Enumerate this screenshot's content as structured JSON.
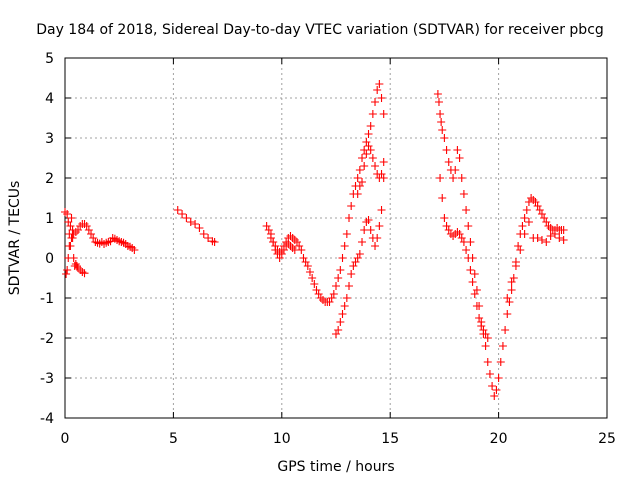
{
  "chart_data": {
    "type": "scatter",
    "title": "Day 184 of 2018, Sidereal Day-to-day VTEC variation (SDTVAR) for receiver pbcg",
    "xlabel": "GPS time / hours",
    "ylabel": "SDTVAR / TECUs",
    "xlim": [
      0,
      25
    ],
    "ylim": [
      -4,
      5
    ],
    "xticks": [
      "0",
      "5",
      "10",
      "15",
      "20",
      "25"
    ],
    "yticks": [
      "-4",
      "-3",
      "-2",
      "-1",
      "0",
      "1",
      "2",
      "3",
      "4",
      "5"
    ],
    "grid": true,
    "marker": "+",
    "color": "#ff0000",
    "series": [
      {
        "x": [
          0.0,
          0.1,
          0.15,
          0.2,
          0.25,
          0.3,
          0.35,
          0.4,
          0.5,
          0.6,
          0.7,
          0.8,
          0.9,
          1.0,
          1.1,
          1.2,
          1.3,
          1.4,
          1.5,
          1.6,
          1.7,
          1.8,
          1.9,
          2.0,
          2.1,
          2.2,
          2.3,
          2.4,
          2.5,
          2.6,
          2.7,
          2.8,
          2.9,
          3.0,
          3.1,
          3.2
        ],
        "y": [
          1.15,
          1.1,
          0.9,
          0.6,
          0.3,
          0.5,
          0.7,
          0.6,
          0.65,
          0.7,
          0.8,
          0.85,
          0.85,
          0.8,
          0.7,
          0.6,
          0.5,
          0.4,
          0.38,
          0.36,
          0.4,
          0.35,
          0.38,
          0.4,
          0.42,
          0.5,
          0.48,
          0.45,
          0.42,
          0.4,
          0.38,
          0.35,
          0.3,
          0.28,
          0.25,
          0.2
        ]
      },
      {
        "x": [
          0.05,
          0.1,
          0.15,
          0.2,
          0.25,
          0.3,
          0.35,
          0.4,
          0.45,
          0.5,
          0.55,
          0.6,
          0.7,
          0.8,
          0.9
        ],
        "y": [
          -0.4,
          -0.3,
          0.0,
          0.3,
          0.8,
          1.0,
          0.5,
          0.0,
          -0.2,
          -0.15,
          -0.2,
          -0.25,
          -0.3,
          -0.35,
          -0.38
        ]
      },
      {
        "x": [
          5.2,
          5.4,
          5.6,
          5.8,
          6.0,
          6.2,
          6.4,
          6.6,
          6.8,
          6.9
        ],
        "y": [
          1.2,
          1.1,
          1.0,
          0.9,
          0.85,
          0.75,
          0.6,
          0.5,
          0.42,
          0.4
        ]
      },
      {
        "x": [
          9.3,
          9.4,
          9.5,
          9.6,
          9.7,
          9.8,
          9.9,
          10.0,
          10.1,
          10.2,
          10.3,
          10.4,
          10.5,
          10.6,
          10.7,
          10.8,
          10.9,
          11.0,
          11.1,
          11.2,
          11.3,
          11.4,
          11.5,
          11.6,
          11.7,
          11.8,
          11.9,
          12.0,
          12.1,
          12.2,
          12.3,
          12.4,
          12.5,
          12.6,
          12.7,
          12.8,
          12.9,
          13.0,
          13.1,
          13.2,
          13.3,
          13.4,
          13.5,
          13.6,
          13.7,
          13.8,
          13.9,
          14.0,
          14.1,
          14.2,
          14.3,
          14.4,
          14.5,
          14.6,
          14.7
        ],
        "y": [
          0.8,
          0.7,
          0.6,
          0.4,
          0.3,
          0.2,
          0.15,
          0.2,
          0.3,
          0.4,
          0.5,
          0.55,
          0.5,
          0.45,
          0.4,
          0.3,
          0.2,
          0.0,
          -0.1,
          -0.2,
          -0.35,
          -0.5,
          -0.65,
          -0.8,
          -0.9,
          -1.0,
          -1.05,
          -1.1,
          -1.1,
          -1.1,
          -1.0,
          -0.9,
          -0.7,
          -0.5,
          -0.3,
          0.0,
          0.3,
          0.6,
          1.0,
          1.3,
          1.6,
          1.8,
          2.0,
          2.2,
          2.5,
          2.7,
          2.9,
          3.1,
          3.3,
          3.6,
          3.9,
          4.2,
          4.35,
          4.0,
          3.6
        ]
      },
      {
        "x": [
          9.5,
          9.6,
          9.7,
          9.8,
          9.9,
          10.0,
          10.1,
          10.2,
          10.3,
          10.4,
          10.5,
          10.6
        ],
        "y": [
          0.5,
          0.4,
          0.2,
          0.1,
          0.0,
          0.1,
          0.2,
          0.3,
          0.35,
          0.3,
          0.25,
          0.2
        ]
      },
      {
        "x": [
          12.5,
          12.6,
          12.7,
          12.8,
          12.9,
          13.0,
          13.1,
          13.2,
          13.3,
          13.4,
          13.5,
          13.6,
          13.7,
          13.8,
          13.9,
          14.0,
          14.1,
          14.2,
          14.3,
          14.4,
          14.5,
          14.6,
          14.7
        ],
        "y": [
          -1.9,
          -1.8,
          -1.6,
          -1.4,
          -1.2,
          -1.0,
          -0.7,
          -0.4,
          -0.2,
          -0.1,
          0.0,
          0.1,
          0.4,
          0.7,
          0.9,
          0.95,
          0.7,
          0.5,
          0.3,
          0.5,
          0.8,
          1.2,
          2.0
        ]
      },
      {
        "x": [
          13.5,
          13.6,
          13.7,
          13.8,
          13.9,
          14.0,
          14.1,
          14.2,
          14.3,
          14.4,
          14.5,
          14.6,
          14.7
        ],
        "y": [
          1.6,
          1.8,
          1.9,
          2.3,
          2.6,
          2.8,
          2.7,
          2.5,
          2.3,
          2.1,
          2.0,
          2.1,
          2.4
        ]
      },
      {
        "x": [
          17.2,
          17.25,
          17.3,
          17.35,
          17.4,
          17.5,
          17.6,
          17.7,
          17.8,
          17.9,
          18.0,
          18.1,
          18.2,
          18.3,
          18.4,
          18.5,
          18.6,
          18.7,
          18.8,
          18.9,
          19.0,
          19.1,
          19.2,
          19.3,
          19.4,
          19.5,
          19.6,
          19.7,
          19.8,
          19.9,
          20.0,
          20.1,
          20.2,
          20.3,
          20.4,
          20.5,
          20.6,
          20.7,
          20.8,
          20.9,
          21.0,
          21.1,
          21.2,
          21.3,
          21.4,
          21.5,
          21.6,
          21.7,
          21.8,
          21.9,
          22.0,
          22.1,
          22.2,
          22.3,
          22.4,
          22.5,
          22.6,
          22.7,
          22.8,
          22.9,
          23.0
        ],
        "y": [
          4.1,
          3.9,
          3.6,
          3.4,
          3.2,
          3.0,
          2.7,
          2.4,
          2.2,
          2.0,
          2.2,
          2.7,
          2.5,
          2.0,
          1.6,
          1.2,
          0.8,
          0.4,
          0.0,
          -0.4,
          -0.8,
          -1.2,
          -1.6,
          -1.9,
          -2.2,
          -2.6,
          -2.9,
          -3.2,
          -3.45,
          -3.3,
          -3.0,
          -2.6,
          -2.2,
          -1.8,
          -1.4,
          -1.1,
          -0.8,
          -0.5,
          -0.1,
          0.3,
          0.6,
          0.8,
          1.0,
          1.2,
          1.4,
          1.5,
          1.45,
          1.4,
          1.3,
          1.2,
          1.1,
          1.0,
          0.9,
          0.8,
          0.75,
          0.7,
          0.7,
          0.75,
          0.7,
          0.7,
          0.7
        ]
      },
      {
        "x": [
          17.3,
          17.4,
          17.5,
          17.6,
          17.7,
          17.8,
          17.9,
          18.0,
          18.1,
          18.2,
          18.3,
          18.4,
          18.5,
          18.6,
          18.7,
          18.8,
          18.9,
          19.0,
          19.1,
          19.2,
          19.3,
          19.4,
          19.5
        ],
        "y": [
          2.0,
          1.5,
          1.0,
          0.8,
          0.7,
          0.6,
          0.55,
          0.6,
          0.65,
          0.6,
          0.5,
          0.4,
          0.2,
          0.0,
          -0.3,
          -0.6,
          -0.9,
          -1.2,
          -1.5,
          -1.7,
          -1.8,
          -1.9,
          -2.0
        ]
      },
      {
        "x": [
          20.4,
          20.6,
          20.8,
          21.0,
          21.2,
          21.4,
          21.6,
          21.8,
          22.0,
          22.2,
          22.4,
          22.6,
          22.8,
          23.0
        ],
        "y": [
          -1.0,
          -0.6,
          -0.2,
          0.2,
          0.6,
          0.9,
          0.5,
          0.5,
          0.45,
          0.4,
          0.55,
          0.6,
          0.5,
          0.45
        ]
      }
    ]
  }
}
